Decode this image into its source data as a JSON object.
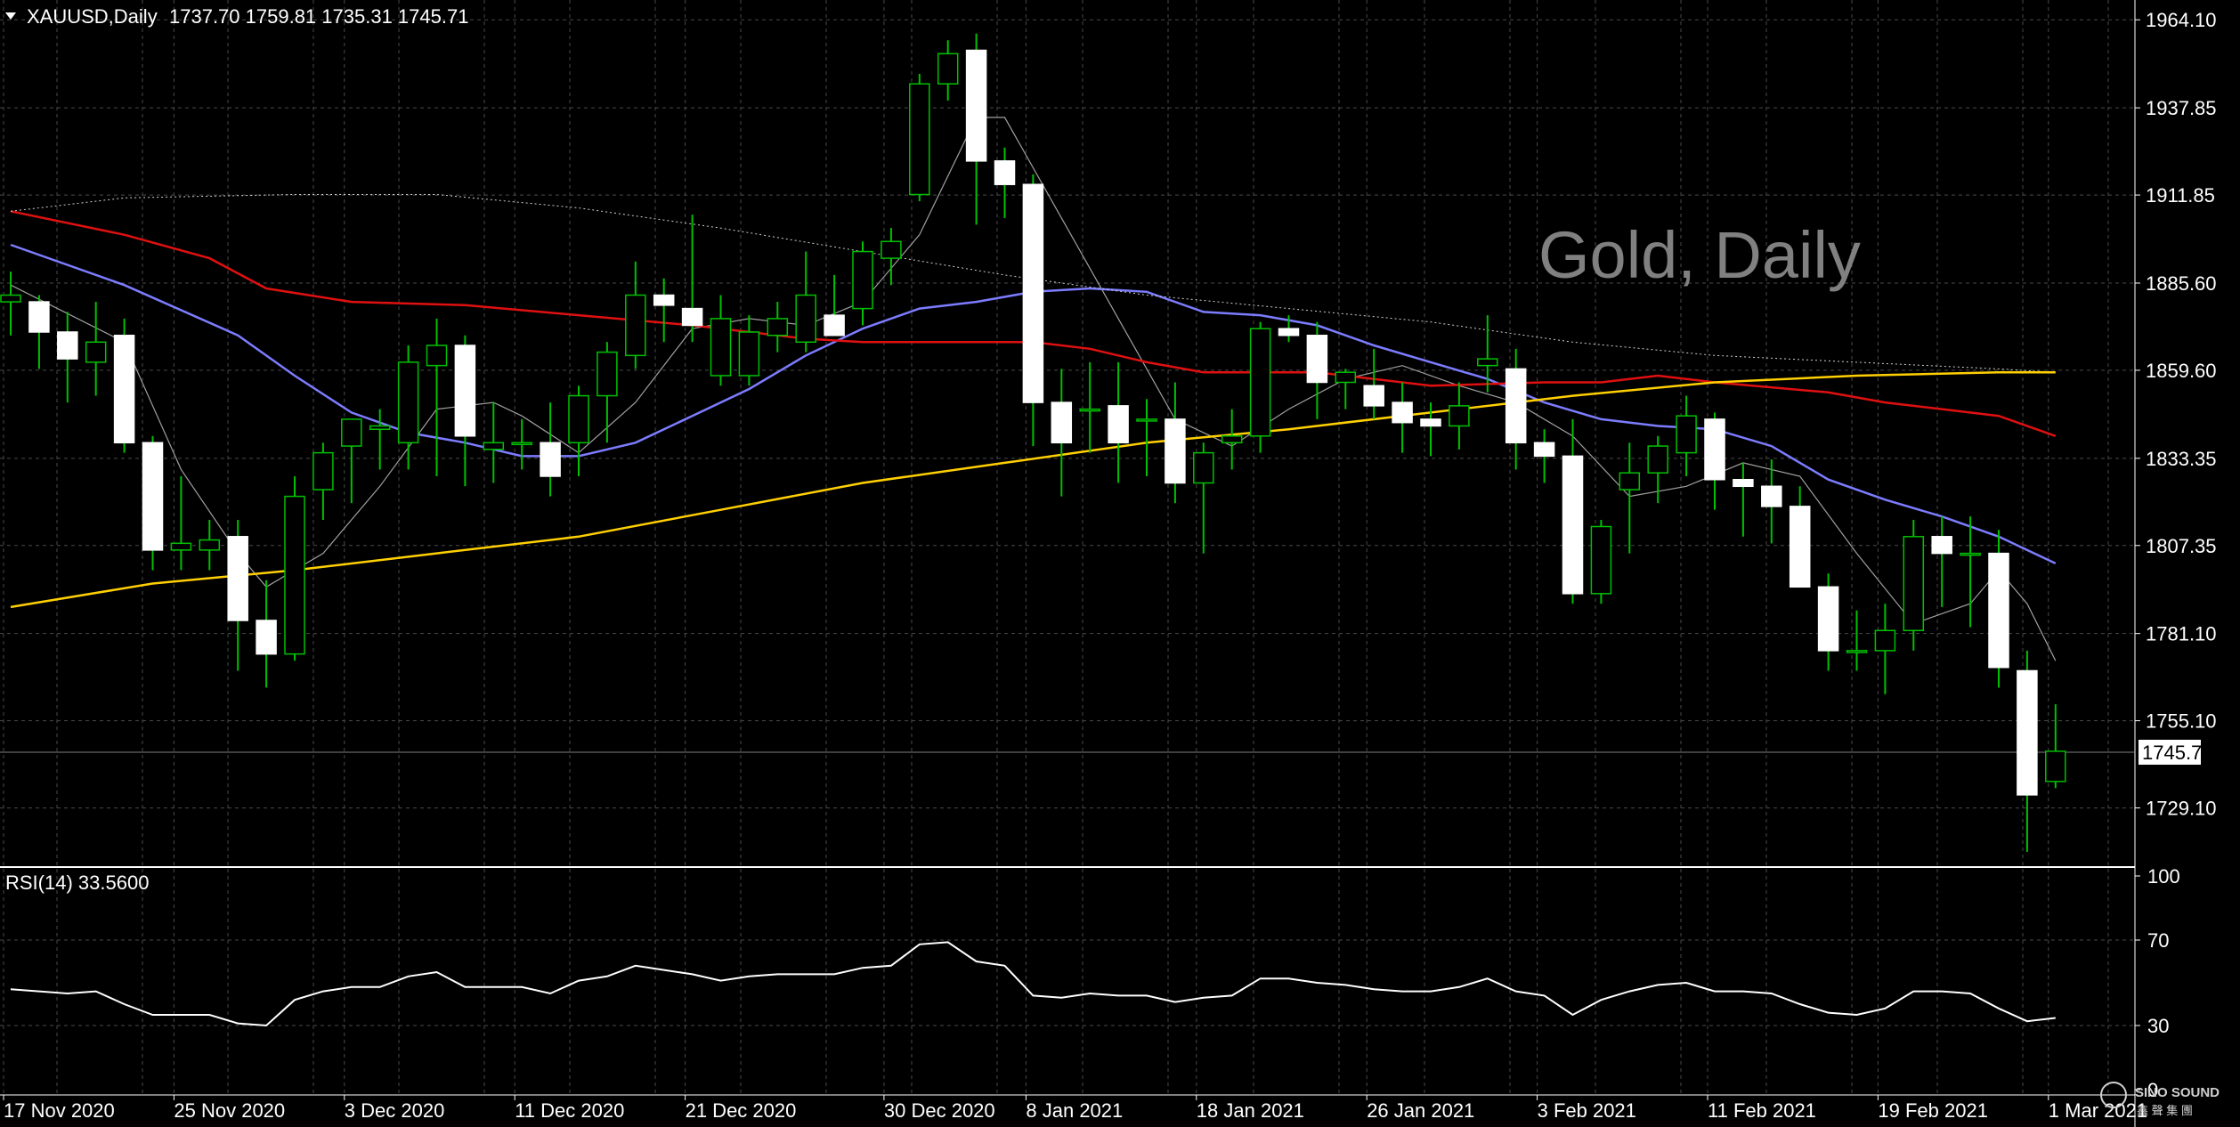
{
  "header": {
    "symbol": "XAUUSD,Daily",
    "ohlc": "1737.70 1759.81 1735.31 1745.71"
  },
  "watermark": "Gold, Daily",
  "current_price_label": "1745.71",
  "rsi_label": "RSI(14) 33.5600",
  "logo": {
    "text": "SINO SOUND",
    "subtext": "鑫 聲 集 團"
  },
  "colors": {
    "background": "#000000",
    "grid": "#4a4a4a",
    "up_candle": "#000000",
    "down_candle": "#ffffff",
    "wick": "#00c000",
    "ma_fast": "#a0a0a0",
    "ma_20": "#7c7cff",
    "ma_50": "#e01010",
    "ma_100": "#d0d0d0",
    "ma_200": "#ffd000",
    "rsi": "#ffffff"
  },
  "chart_data": {
    "type": "candlestick",
    "symbol": "XAUUSD",
    "timeframe": "Daily",
    "ylim": [
      1712,
      1970
    ],
    "y_ticks": [
      "1964.10",
      "1937.85",
      "1911.85",
      "1885.60",
      "1859.60",
      "1833.35",
      "1807.35",
      "1781.10",
      "1755.10",
      "1729.10"
    ],
    "x_ticks": [
      {
        "label": "17 Nov 2020",
        "index": 0
      },
      {
        "label": "25 Nov 2020",
        "index": 6
      },
      {
        "label": "3 Dec 2020",
        "index": 12
      },
      {
        "label": "11 Dec 2020",
        "index": 18
      },
      {
        "label": "21 Dec 2020",
        "index": 24
      },
      {
        "label": "30 Dec 2020",
        "index": 31
      },
      {
        "label": "8 Jan 2021",
        "index": 36
      },
      {
        "label": "18 Jan 2021",
        "index": 42
      },
      {
        "label": "26 Jan 2021",
        "index": 48
      },
      {
        "label": "3 Feb 2021",
        "index": 54
      },
      {
        "label": "11 Feb 2021",
        "index": 60
      },
      {
        "label": "19 Feb 2021",
        "index": 66
      },
      {
        "label": "1 Mar 2021",
        "index": 72
      }
    ],
    "candles": [
      [
        1880,
        1889,
        1870,
        1882
      ],
      [
        1880,
        1882,
        1860,
        1871
      ],
      [
        1871,
        1877,
        1850,
        1863
      ],
      [
        1862,
        1880,
        1852,
        1868
      ],
      [
        1870,
        1875,
        1835,
        1838
      ],
      [
        1838,
        1840,
        1800,
        1806
      ],
      [
        1806,
        1828,
        1800,
        1808
      ],
      [
        1806,
        1815,
        1800,
        1809
      ],
      [
        1810,
        1815,
        1770,
        1785
      ],
      [
        1785,
        1797,
        1765,
        1775
      ],
      [
        1775,
        1828,
        1773,
        1822
      ],
      [
        1824,
        1838,
        1815,
        1835
      ],
      [
        1837,
        1845,
        1820,
        1845
      ],
      [
        1842,
        1848,
        1830,
        1843
      ],
      [
        1838,
        1867,
        1830,
        1862
      ],
      [
        1861,
        1875,
        1828,
        1867
      ],
      [
        1867,
        1870,
        1825,
        1840
      ],
      [
        1836,
        1850,
        1826,
        1838
      ],
      [
        1838,
        1845,
        1830,
        1838
      ],
      [
        1838,
        1850,
        1822,
        1828
      ],
      [
        1838,
        1855,
        1828,
        1852
      ],
      [
        1852,
        1868,
        1838,
        1865
      ],
      [
        1864,
        1892,
        1860,
        1882
      ],
      [
        1882,
        1887,
        1868,
        1879
      ],
      [
        1878,
        1906,
        1868,
        1873
      ],
      [
        1858,
        1882,
        1855,
        1875
      ],
      [
        1858,
        1876,
        1855,
        1871
      ],
      [
        1870,
        1880,
        1865,
        1875
      ],
      [
        1868,
        1895,
        1865,
        1882
      ],
      [
        1876,
        1888,
        1870,
        1870
      ],
      [
        1878,
        1898,
        1873,
        1895
      ],
      [
        1893,
        1902,
        1885,
        1898
      ],
      [
        1912,
        1948,
        1910,
        1945
      ],
      [
        1945,
        1958,
        1940,
        1954
      ],
      [
        1955,
        1960,
        1903,
        1922
      ],
      [
        1922,
        1926,
        1905,
        1915
      ],
      [
        1915,
        1918,
        1837,
        1850
      ],
      [
        1850,
        1860,
        1822,
        1838
      ],
      [
        1848,
        1862,
        1835,
        1848
      ],
      [
        1849,
        1862,
        1826,
        1838
      ],
      [
        1845,
        1851,
        1828,
        1845
      ],
      [
        1845,
        1856,
        1820,
        1826
      ],
      [
        1826,
        1838,
        1805,
        1835
      ],
      [
        1838,
        1848,
        1830,
        1840
      ],
      [
        1840,
        1874,
        1835,
        1872
      ],
      [
        1872,
        1876,
        1868,
        1870
      ],
      [
        1870,
        1874,
        1845,
        1856
      ],
      [
        1856,
        1860,
        1848,
        1859
      ],
      [
        1855,
        1866,
        1845,
        1849
      ],
      [
        1850,
        1856,
        1835,
        1844
      ],
      [
        1845,
        1850,
        1834,
        1843
      ],
      [
        1843,
        1856,
        1836,
        1849
      ],
      [
        1861,
        1876,
        1853,
        1863
      ],
      [
        1860,
        1866,
        1830,
        1838
      ],
      [
        1838,
        1842,
        1826,
        1834
      ],
      [
        1834,
        1845,
        1790,
        1793
      ],
      [
        1793,
        1815,
        1790,
        1813
      ],
      [
        1824,
        1838,
        1805,
        1829
      ],
      [
        1829,
        1840,
        1820,
        1837
      ],
      [
        1835,
        1852,
        1828,
        1846
      ],
      [
        1845,
        1847,
        1818,
        1827
      ],
      [
        1827,
        1832,
        1810,
        1825
      ],
      [
        1825,
        1833,
        1808,
        1819
      ],
      [
        1819,
        1825,
        1795,
        1795
      ],
      [
        1795,
        1799,
        1770,
        1776
      ],
      [
        1776,
        1788,
        1770,
        1776
      ],
      [
        1776,
        1790,
        1763,
        1782
      ],
      [
        1782,
        1815,
        1776,
        1810
      ],
      [
        1810,
        1816,
        1789,
        1805
      ],
      [
        1805,
        1816,
        1783,
        1805
      ],
      [
        1805,
        1812,
        1765,
        1771
      ],
      [
        1770,
        1776,
        1716,
        1733
      ],
      [
        1737,
        1760,
        1735,
        1746
      ]
    ],
    "current_price": 1745.71,
    "moving_averages": [
      {
        "period": 5,
        "color": "#a0a0a0",
        "points": [
          [
            0,
            1885
          ],
          [
            4,
            1868
          ],
          [
            6,
            1830
          ],
          [
            8,
            1805
          ],
          [
            9,
            1795
          ],
          [
            11,
            1805
          ],
          [
            13,
            1825
          ],
          [
            15,
            1848
          ],
          [
            17,
            1850
          ],
          [
            18,
            1846
          ],
          [
            20,
            1835
          ],
          [
            22,
            1850
          ],
          [
            24,
            1872
          ],
          [
            26,
            1875
          ],
          [
            28,
            1873
          ],
          [
            30,
            1880
          ],
          [
            32,
            1900
          ],
          [
            34,
            1935
          ],
          [
            35,
            1935
          ],
          [
            37,
            1905
          ],
          [
            39,
            1875
          ],
          [
            41,
            1845
          ],
          [
            43,
            1837
          ],
          [
            45,
            1848
          ],
          [
            47,
            1857
          ],
          [
            49,
            1861
          ],
          [
            51,
            1855
          ],
          [
            53,
            1850
          ],
          [
            55,
            1840
          ],
          [
            57,
            1822
          ],
          [
            59,
            1825
          ],
          [
            61,
            1832
          ],
          [
            63,
            1828
          ],
          [
            65,
            1805
          ],
          [
            67,
            1784
          ],
          [
            69,
            1790
          ],
          [
            70,
            1800
          ],
          [
            71,
            1790
          ],
          [
            72,
            1773
          ]
        ]
      },
      {
        "period": 20,
        "color": "#7c7cff",
        "points": [
          [
            0,
            1897
          ],
          [
            4,
            1885
          ],
          [
            8,
            1870
          ],
          [
            10,
            1858
          ],
          [
            12,
            1847
          ],
          [
            14,
            1841
          ],
          [
            16,
            1838
          ],
          [
            18,
            1834
          ],
          [
            20,
            1834
          ],
          [
            22,
            1838
          ],
          [
            24,
            1846
          ],
          [
            26,
            1854
          ],
          [
            28,
            1864
          ],
          [
            30,
            1872
          ],
          [
            32,
            1878
          ],
          [
            34,
            1880
          ],
          [
            36,
            1883
          ],
          [
            38,
            1884
          ],
          [
            40,
            1883
          ],
          [
            42,
            1877
          ],
          [
            44,
            1876
          ],
          [
            46,
            1873
          ],
          [
            48,
            1867
          ],
          [
            50,
            1862
          ],
          [
            52,
            1857
          ],
          [
            54,
            1850
          ],
          [
            56,
            1845
          ],
          [
            58,
            1843
          ],
          [
            60,
            1842
          ],
          [
            62,
            1837
          ],
          [
            64,
            1827
          ],
          [
            66,
            1821
          ],
          [
            68,
            1816
          ],
          [
            70,
            1810
          ],
          [
            72,
            1802
          ]
        ]
      },
      {
        "period": 50,
        "color": "#e01010",
        "points": [
          [
            0,
            1907
          ],
          [
            4,
            1900
          ],
          [
            7,
            1893
          ],
          [
            9,
            1884
          ],
          [
            12,
            1880
          ],
          [
            16,
            1879
          ],
          [
            20,
            1876
          ],
          [
            24,
            1873
          ],
          [
            28,
            1869
          ],
          [
            30,
            1868
          ],
          [
            32,
            1868
          ],
          [
            34,
            1868
          ],
          [
            36,
            1868
          ],
          [
            38,
            1866
          ],
          [
            40,
            1862
          ],
          [
            42,
            1859
          ],
          [
            46,
            1859
          ],
          [
            50,
            1855
          ],
          [
            54,
            1856
          ],
          [
            56,
            1856
          ],
          [
            58,
            1858
          ],
          [
            60,
            1856
          ],
          [
            64,
            1853
          ],
          [
            66,
            1850
          ],
          [
            68,
            1848
          ],
          [
            70,
            1846
          ],
          [
            72,
            1840
          ]
        ]
      },
      {
        "period": 100,
        "color": "#d0d0d0",
        "points": [
          [
            0,
            1907
          ],
          [
            4,
            1911
          ],
          [
            10,
            1912
          ],
          [
            15,
            1912
          ],
          [
            20,
            1908
          ],
          [
            25,
            1902
          ],
          [
            30,
            1895
          ],
          [
            35,
            1888
          ],
          [
            40,
            1882
          ],
          [
            45,
            1878
          ],
          [
            50,
            1874
          ],
          [
            55,
            1868
          ],
          [
            60,
            1864
          ],
          [
            65,
            1862
          ],
          [
            70,
            1860
          ],
          [
            72,
            1859
          ]
        ]
      },
      {
        "period": 200,
        "color": "#ffd000",
        "points": [
          [
            0,
            1789
          ],
          [
            5,
            1796
          ],
          [
            10,
            1800
          ],
          [
            15,
            1805
          ],
          [
            20,
            1810
          ],
          [
            25,
            1818
          ],
          [
            30,
            1826
          ],
          [
            35,
            1832
          ],
          [
            40,
            1838
          ],
          [
            45,
            1842
          ],
          [
            50,
            1847
          ],
          [
            55,
            1852
          ],
          [
            60,
            1856
          ],
          [
            65,
            1858
          ],
          [
            70,
            1859
          ],
          [
            72,
            1859
          ]
        ]
      }
    ],
    "rsi": {
      "period": 14,
      "value": 33.56,
      "ylim": [
        0,
        100
      ],
      "y_ticks": [
        "100",
        "70",
        "30",
        "0"
      ],
      "values": [
        47,
        46,
        45,
        46,
        40,
        35,
        35,
        35,
        31,
        30,
        42,
        46,
        48,
        48,
        53,
        55,
        48,
        48,
        48,
        45,
        51,
        53,
        58,
        56,
        54,
        51,
        53,
        54,
        54,
        54,
        57,
        58,
        68,
        69,
        60,
        58,
        44,
        43,
        45,
        44,
        44,
        41,
        43,
        44,
        52,
        52,
        50,
        49,
        47,
        46,
        46,
        48,
        52,
        46,
        44,
        35,
        42,
        46,
        49,
        50,
        46,
        46,
        45,
        40,
        36,
        35,
        38,
        46,
        46,
        45,
        38,
        32,
        33.56
      ]
    }
  }
}
